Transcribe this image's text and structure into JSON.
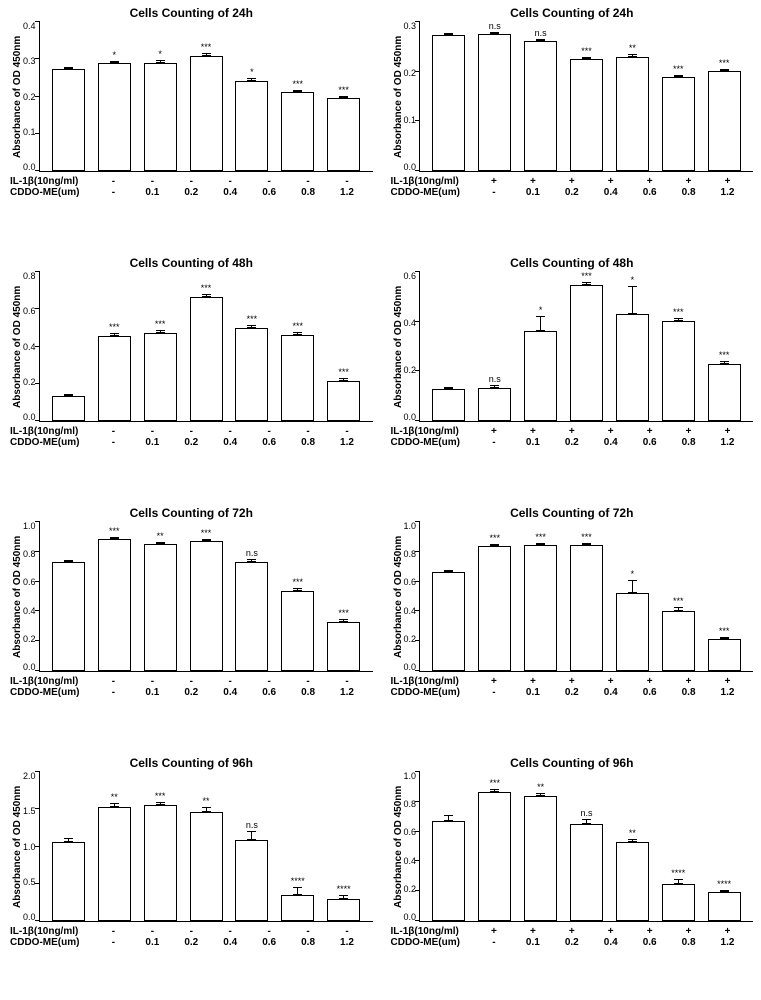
{
  "global": {
    "ylabel": "Absorbance of OD 450nm",
    "row1_label": "IL-1β(10ng/ml)",
    "row2_label": "CDDO-ME(um)",
    "bar_fill": "#ffffff",
    "bar_stroke": "#000000",
    "cddo_levels": [
      "-",
      "0.1",
      "0.2",
      "0.4",
      "0.6",
      "0.8",
      "1.2"
    ]
  },
  "panels": [
    {
      "title": "Cells Counting of 24h",
      "il1b": "-",
      "ymax": 0.4,
      "yticks": [
        0.0,
        0.1,
        0.2,
        0.3,
        0.4
      ],
      "bars": [
        {
          "v": 0.272,
          "e": 0.006,
          "s": ""
        },
        {
          "v": 0.288,
          "e": 0.006,
          "s": "*"
        },
        {
          "v": 0.288,
          "e": 0.007,
          "s": "*"
        },
        {
          "v": 0.308,
          "e": 0.006,
          "s": "***"
        },
        {
          "v": 0.24,
          "e": 0.008,
          "s": "*"
        },
        {
          "v": 0.21,
          "e": 0.005,
          "s": "***"
        },
        {
          "v": 0.195,
          "e": 0.006,
          "s": "***"
        }
      ]
    },
    {
      "title": "Cells Counting of 24h",
      "il1b": "+",
      "ymax": 0.3,
      "yticks": [
        0.0,
        0.1,
        0.2,
        0.3
      ],
      "bars": [
        {
          "v": 0.272,
          "e": 0.005,
          "s": ""
        },
        {
          "v": 0.286,
          "e": 0.005,
          "s": "n.s"
        },
        {
          "v": 0.26,
          "e": 0.005,
          "s": "n.s"
        },
        {
          "v": 0.224,
          "e": 0.005,
          "s": "***"
        },
        {
          "v": 0.228,
          "e": 0.006,
          "s": "**"
        },
        {
          "v": 0.188,
          "e": 0.004,
          "s": "***"
        },
        {
          "v": 0.2,
          "e": 0.005,
          "s": "***"
        }
      ]
    },
    {
      "title": "Cells Counting of 48h",
      "il1b": "-",
      "ymax": 0.8,
      "yticks": [
        0.0,
        0.2,
        0.4,
        0.6,
        0.8
      ],
      "bars": [
        {
          "v": 0.135,
          "e": 0.01,
          "s": ""
        },
        {
          "v": 0.452,
          "e": 0.015,
          "s": "***"
        },
        {
          "v": 0.468,
          "e": 0.015,
          "s": "***"
        },
        {
          "v": 0.66,
          "e": 0.02,
          "s": "***"
        },
        {
          "v": 0.496,
          "e": 0.015,
          "s": "***"
        },
        {
          "v": 0.46,
          "e": 0.015,
          "s": "***"
        },
        {
          "v": 0.216,
          "e": 0.012,
          "s": "***"
        }
      ]
    },
    {
      "title": "Cells Counting of 48h",
      "il1b": "+",
      "ymax": 0.6,
      "yticks": [
        0.0,
        0.2,
        0.4,
        0.6
      ],
      "bars": [
        {
          "v": 0.128,
          "e": 0.01,
          "s": ""
        },
        {
          "v": 0.132,
          "e": 0.012,
          "s": "n.s"
        },
        {
          "v": 0.36,
          "e": 0.06,
          "s": "*"
        },
        {
          "v": 0.556,
          "e": 0.012,
          "s": "***"
        },
        {
          "v": 0.43,
          "e": 0.11,
          "s": "*"
        },
        {
          "v": 0.4,
          "e": 0.012,
          "s": "***"
        },
        {
          "v": 0.228,
          "e": 0.012,
          "s": "***"
        }
      ]
    },
    {
      "title": "Cells Counting of 72h",
      "il1b": "-",
      "ymax": 1.0,
      "yticks": [
        0.0,
        0.2,
        0.4,
        0.6,
        0.8,
        1.0
      ],
      "bars": [
        {
          "v": 0.725,
          "e": 0.01,
          "s": ""
        },
        {
          "v": 0.88,
          "e": 0.012,
          "s": "***"
        },
        {
          "v": 0.845,
          "e": 0.012,
          "s": "**"
        },
        {
          "v": 0.865,
          "e": 0.012,
          "s": "***"
        },
        {
          "v": 0.73,
          "e": 0.015,
          "s": "n.s"
        },
        {
          "v": 0.535,
          "e": 0.02,
          "s": "***"
        },
        {
          "v": 0.33,
          "e": 0.015,
          "s": "***"
        }
      ]
    },
    {
      "title": "Cells Counting of 72h",
      "il1b": "+",
      "ymax": 1.0,
      "yticks": [
        0.0,
        0.2,
        0.4,
        0.6,
        0.8,
        1.0
      ],
      "bars": [
        {
          "v": 0.66,
          "e": 0.015,
          "s": ""
        },
        {
          "v": 0.835,
          "e": 0.012,
          "s": "***"
        },
        {
          "v": 0.84,
          "e": 0.012,
          "s": "***"
        },
        {
          "v": 0.84,
          "e": 0.012,
          "s": "***"
        },
        {
          "v": 0.52,
          "e": 0.09,
          "s": "*"
        },
        {
          "v": 0.4,
          "e": 0.025,
          "s": "***"
        },
        {
          "v": 0.215,
          "e": 0.012,
          "s": "***"
        }
      ]
    },
    {
      "title": "Cells Counting of 96h",
      "il1b": "-",
      "ymax": 2.0,
      "yticks": [
        0.0,
        0.5,
        1.0,
        1.5,
        2.0
      ],
      "bars": [
        {
          "v": 1.06,
          "e": 0.05,
          "s": ""
        },
        {
          "v": 1.52,
          "e": 0.06,
          "s": "**"
        },
        {
          "v": 1.55,
          "e": 0.04,
          "s": "***"
        },
        {
          "v": 1.46,
          "e": 0.06,
          "s": "**"
        },
        {
          "v": 1.08,
          "e": 0.12,
          "s": "n.s"
        },
        {
          "v": 0.35,
          "e": 0.1,
          "s": "****"
        },
        {
          "v": 0.3,
          "e": 0.05,
          "s": "****"
        }
      ]
    },
    {
      "title": "Cells Counting of 96h",
      "il1b": "+",
      "ymax": 1.0,
      "yticks": [
        0.0,
        0.2,
        0.4,
        0.6,
        0.8,
        1.0
      ],
      "bars": [
        {
          "v": 0.67,
          "e": 0.035,
          "s": ""
        },
        {
          "v": 0.86,
          "e": 0.02,
          "s": "***"
        },
        {
          "v": 0.835,
          "e": 0.02,
          "s": "**"
        },
        {
          "v": 0.65,
          "e": 0.03,
          "s": "n.s"
        },
        {
          "v": 0.53,
          "e": 0.02,
          "s": "**"
        },
        {
          "v": 0.25,
          "e": 0.03,
          "s": "****"
        },
        {
          "v": 0.195,
          "e": 0.015,
          "s": "****"
        }
      ]
    }
  ]
}
